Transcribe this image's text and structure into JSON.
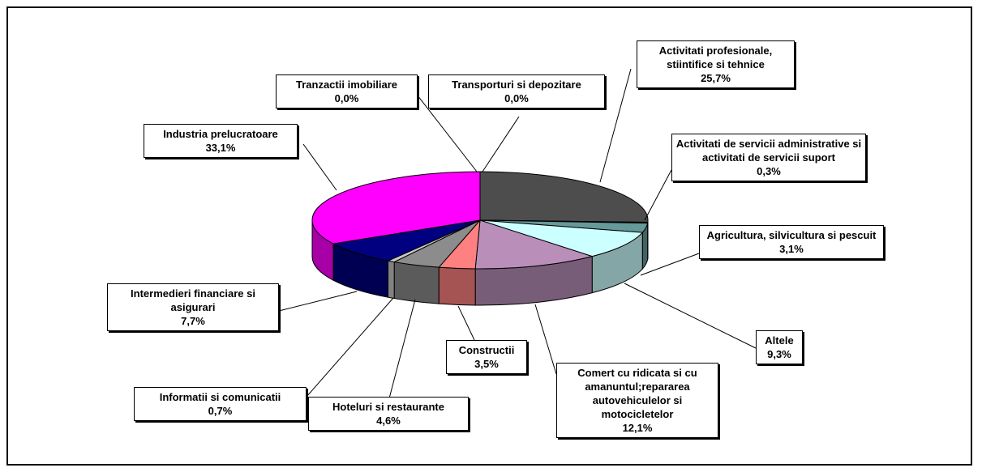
{
  "chart_data": {
    "type": "pie3d",
    "categories": [
      "Activitati profesionale, stiintifice si tehnice",
      "Activitati de servicii administrative si activitati de servicii suport",
      "Agricultura, silvicultura si pescuit",
      "Altele",
      "Comert cu ridicata si cu amanuntul;repararea autovehiculelor si motocicletelor",
      "Constructii",
      "Hoteluri si restaurante",
      "Informatii si comunicatii",
      "Intermedieri financiare si asigurari",
      "Industria prelucratoare",
      "Tranzactii imobiliare",
      "Transporturi si depozitare"
    ],
    "values": [
      25.7,
      0.3,
      3.1,
      9.3,
      12.1,
      3.5,
      4.6,
      0.7,
      7.7,
      33.1,
      0.0,
      0.0
    ],
    "value_labels": [
      "25,7%",
      "0,3%",
      "3,1%",
      "9,3%",
      "12,1%",
      "3,5%",
      "4,6%",
      "0,7%",
      "7,7%",
      "33,1%",
      "0,0%",
      "0,0%"
    ],
    "colors": [
      "#4d4d4d",
      "#ffffcc",
      "#669999",
      "#ccffff",
      "#b98fb9",
      "#ff8080",
      "#8c8c8c",
      "#c8c8c8",
      "#000080",
      "#ff00ff",
      "#ffffff",
      "#ffffff"
    ]
  }
}
